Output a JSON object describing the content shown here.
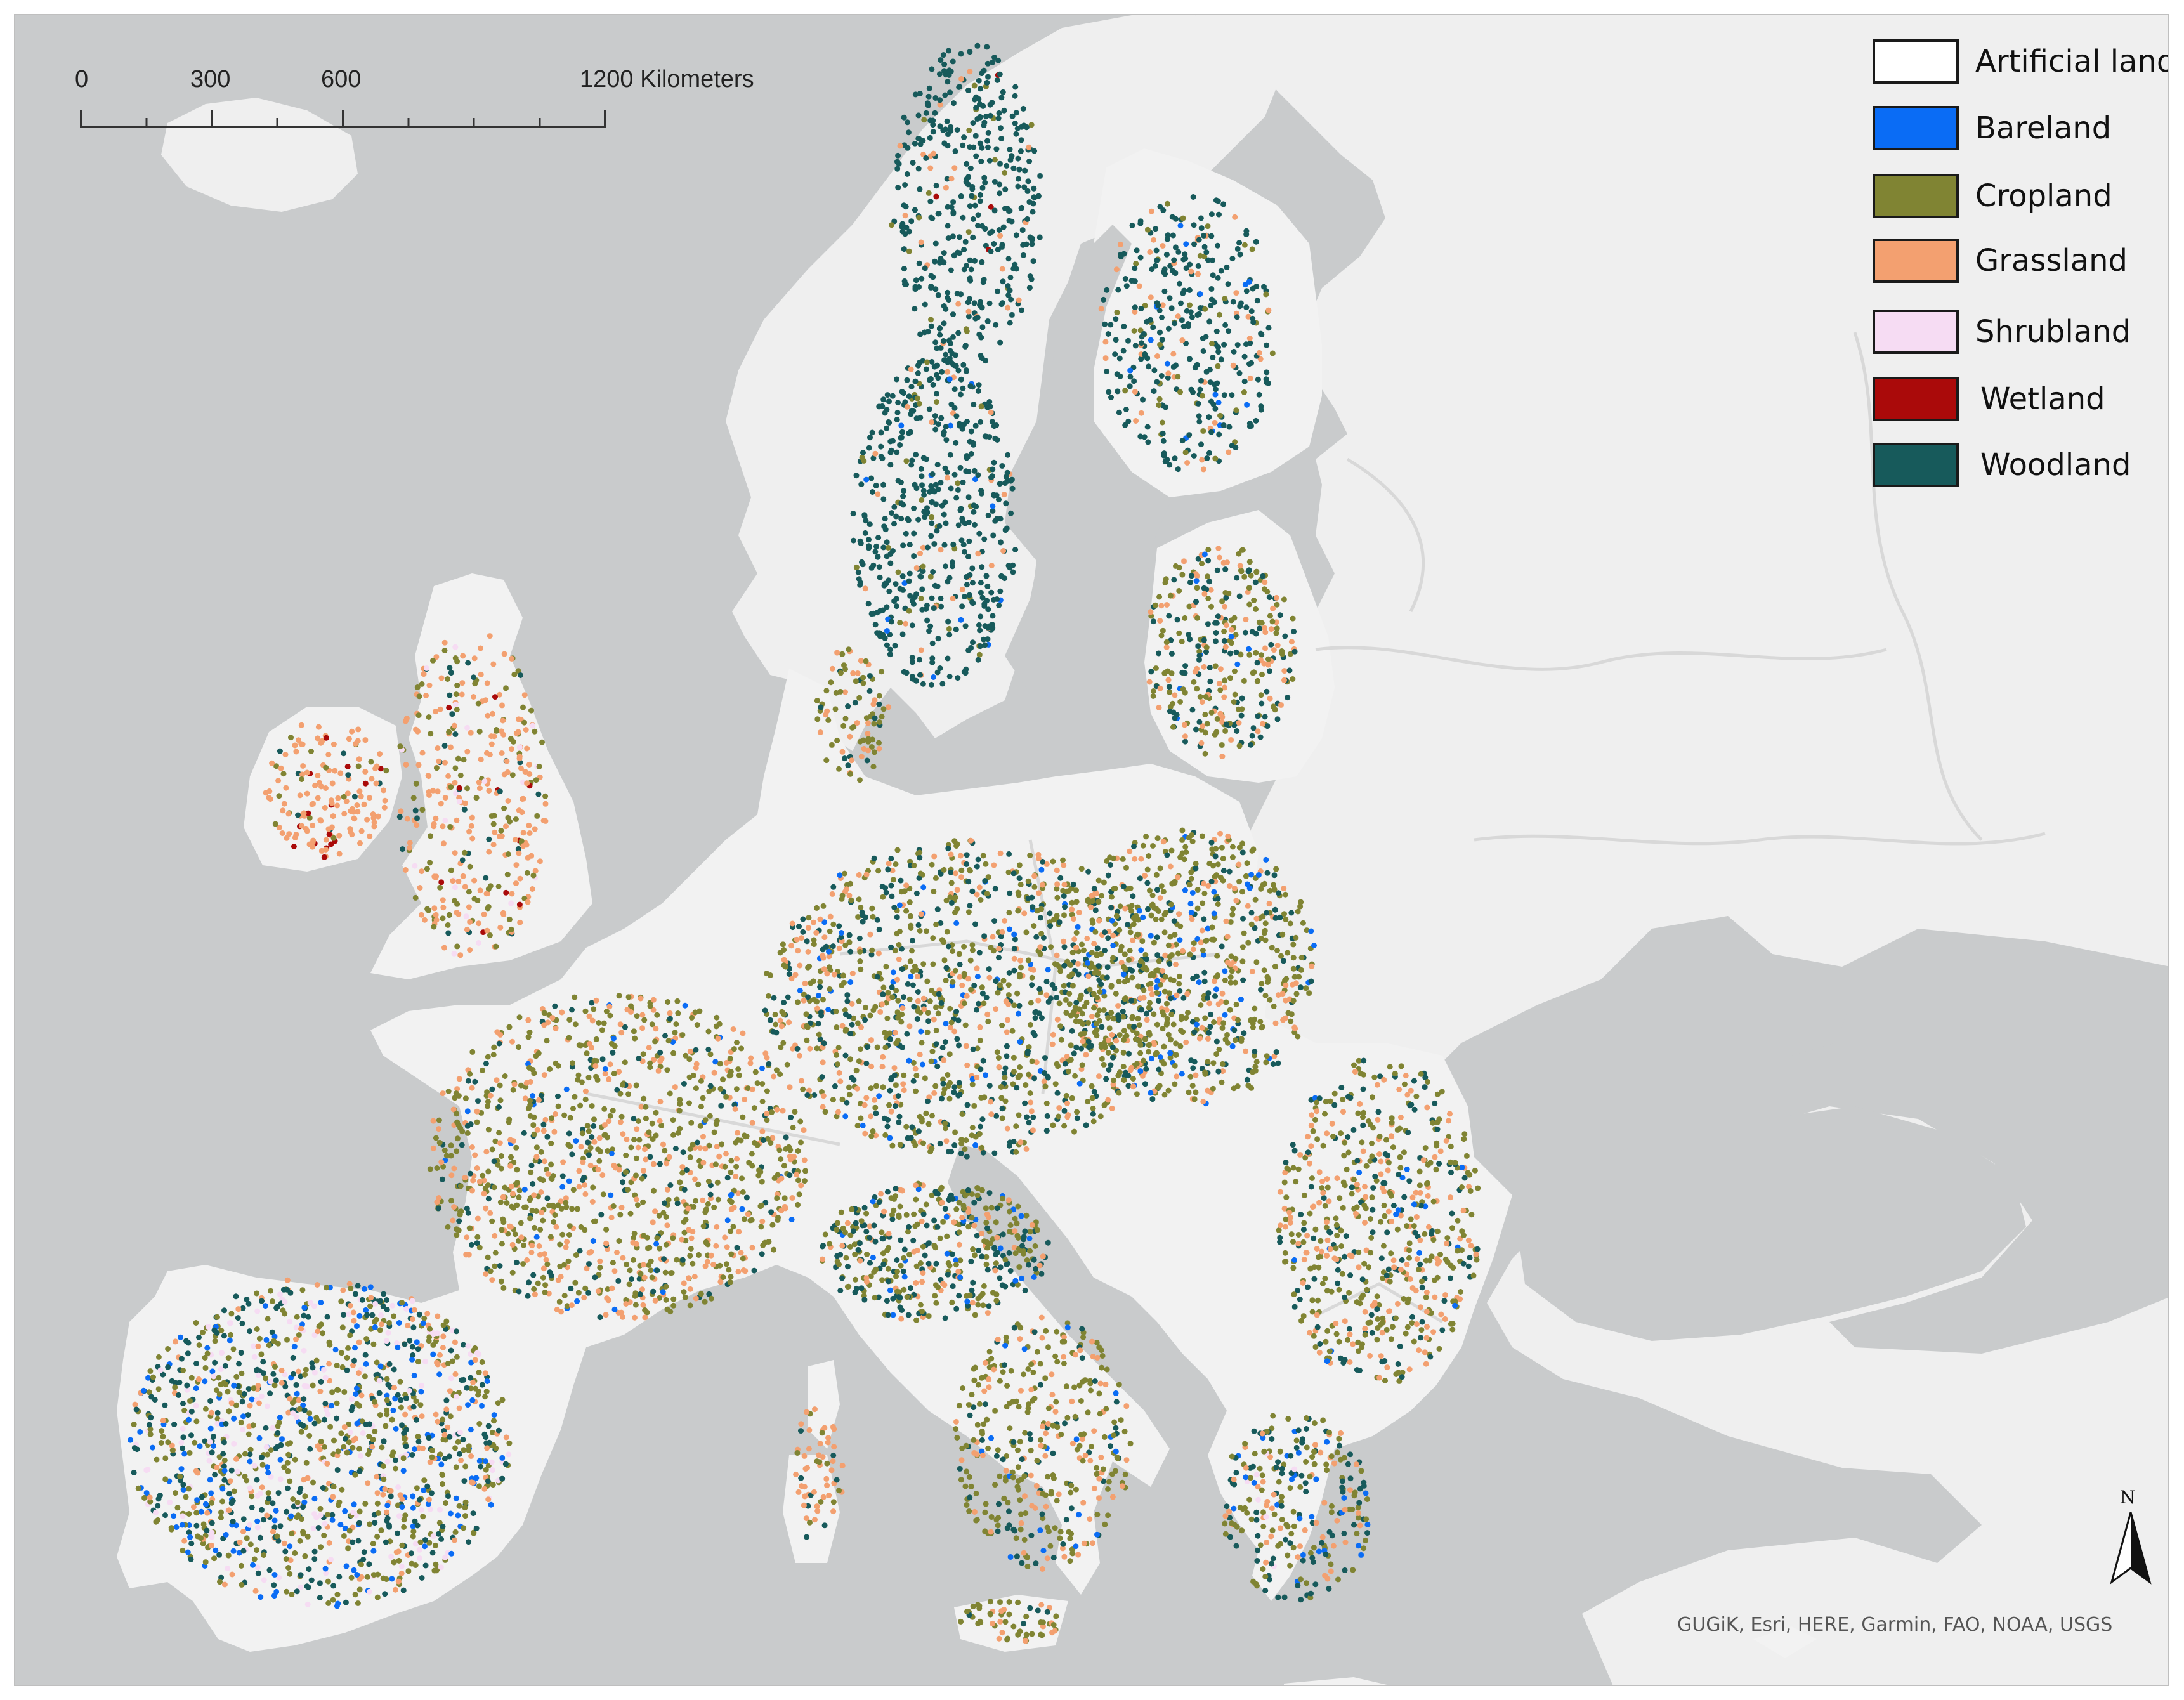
{
  "legend": {
    "items": [
      {
        "label": "Artificial land",
        "color": "#ffffff"
      },
      {
        "label": "Bareland",
        "color": "#0a6cf5"
      },
      {
        "label": "Cropland",
        "color": "#808433"
      },
      {
        "label": "Grassland",
        "color": "#f3a070"
      },
      {
        "label": "Shrubland",
        "color": "#f6dcf3"
      },
      {
        "label": "Wetland",
        "color": "#aa0a0a"
      },
      {
        "label": "Woodland",
        "color": "#175a5b"
      }
    ]
  },
  "scalebar": {
    "ticks": [
      "0",
      "300",
      "600",
      "1200 Kilometers"
    ]
  },
  "north_arrow": {
    "label": "N"
  },
  "attribution": "GUGiK, Esri, HERE, Garmin, FAO, NOAA, USGS",
  "colors": {
    "sea": "#c9cbcc",
    "land_eu": "#f2f2f2",
    "land_other": "#efefef",
    "borders": "#d8d8d8"
  }
}
